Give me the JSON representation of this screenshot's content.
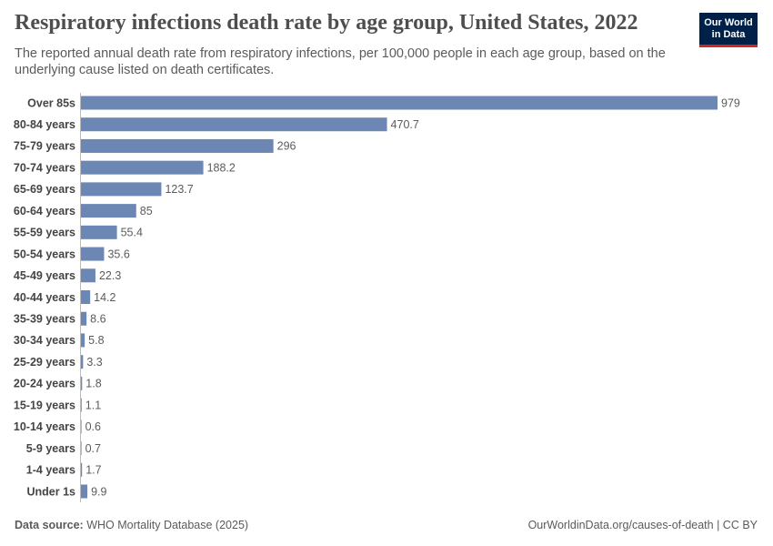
{
  "chart_data": {
    "type": "bar",
    "orientation": "horizontal",
    "title": "Respiratory infections death rate by age group, United States, 2022",
    "subtitle": "The reported annual death rate from respiratory infections, per 100,000 people in each age group, based on the underlying cause listed on death certificates.",
    "logo": [
      "Our World",
      "in Data"
    ],
    "source_label": "Data source:",
    "source": "WHO Mortality Database (2025)",
    "url_note": "OurWorldinData.org/causes-of-death | CC BY",
    "color": "#6d87b5",
    "categories": [
      "Over 85s",
      "80-84 years",
      "75-79 years",
      "70-74 years",
      "65-69 years",
      "60-64 years",
      "55-59 years",
      "50-54 years",
      "45-49 years",
      "40-44 years",
      "35-39 years",
      "30-34 years",
      "25-29 years",
      "20-24 years",
      "15-19 years",
      "10-14 years",
      "5-9 years",
      "1-4 years",
      "Under 1s"
    ],
    "values": [
      979,
      470.7,
      296,
      188.2,
      123.7,
      85,
      55.4,
      35.6,
      22.3,
      14.2,
      8.6,
      5.8,
      3.3,
      1.8,
      1.1,
      0.6,
      0.7,
      1.7,
      9.9
    ]
  }
}
